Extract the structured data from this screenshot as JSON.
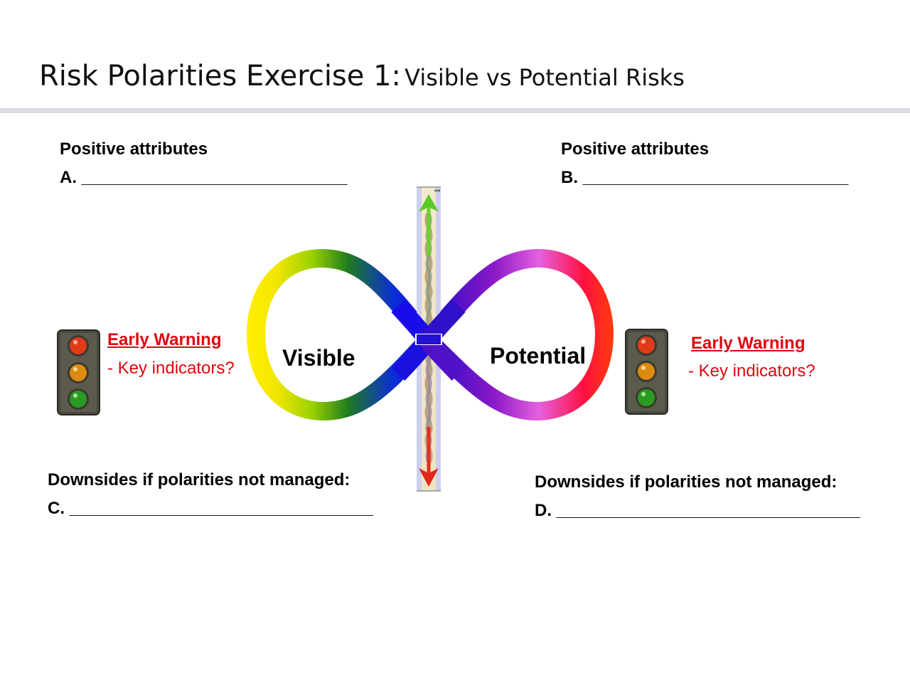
{
  "header": {
    "title_main": "Risk Polarities Exercise 1:",
    "title_sub": "Visible vs Potential Risks"
  },
  "left": {
    "positive_heading": "Positive attributes",
    "positive_blank": "A. ____________________________",
    "warning_heading": "Early Warning",
    "warning_text": "- Key indicators?",
    "downsides_heading": "Downsides if polarities not managed:",
    "downsides_blank": "C. ________________________________"
  },
  "right": {
    "positive_heading": "Positive attributes",
    "positive_blank": "B. ____________________________",
    "warning_heading": "Early Warning",
    "warning_text": "- Key indicators?",
    "downsides_heading": "Downsides if polarities not managed:",
    "downsides_blank": "D. ________________________________"
  },
  "diagram": {
    "left_pole": "Visible",
    "right_pole": "Potential",
    "arrow_marker": "**"
  },
  "icons": {
    "left_traffic_light": "traffic-light-icon",
    "right_traffic_light": "traffic-light-icon"
  },
  "colors": {
    "warning": "#e0060f",
    "rule": "#dcdce6"
  }
}
